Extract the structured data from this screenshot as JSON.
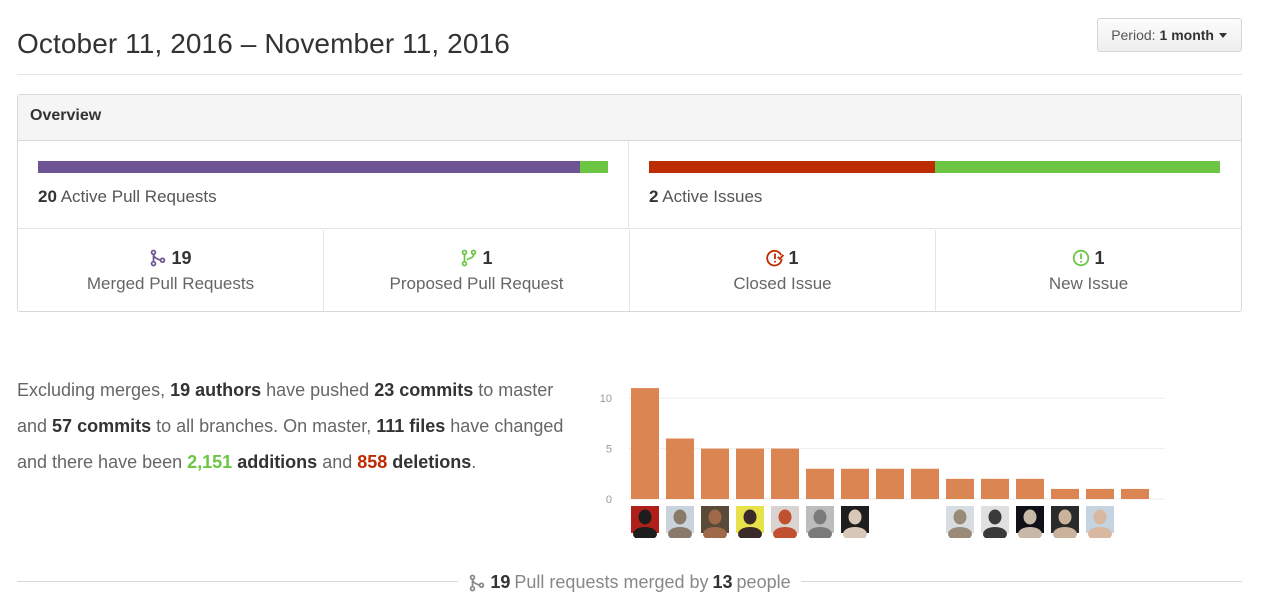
{
  "header": {
    "date_range": "October 11, 2016 – November 11, 2016",
    "period_prefix": "Period:",
    "period_value": "1 month"
  },
  "overview": {
    "title": "Overview",
    "pull_requests": {
      "count": "20",
      "label": "Active Pull Requests",
      "merged_fraction": 0.95,
      "bar_colors": {
        "merged": "#6e5494",
        "proposed": "#6cc644"
      }
    },
    "issues": {
      "count": "2",
      "label": "Active Issues",
      "closed_fraction": 0.5,
      "bar_colors": {
        "closed": "#bd2c00",
        "new": "#6cc644"
      }
    },
    "stats": [
      {
        "icon": "git-merge-icon",
        "color": "#6e5494",
        "count": "19",
        "label": "Merged Pull Requests"
      },
      {
        "icon": "git-pull-request-icon",
        "color": "#6cc644",
        "count": "1",
        "label": "Proposed Pull Request"
      },
      {
        "icon": "issue-closed-icon",
        "color": "#bd2c00",
        "count": "1",
        "label": "Closed Issue"
      },
      {
        "icon": "issue-opened-icon",
        "color": "#6cc644",
        "count": "1",
        "label": "New Issue"
      }
    ]
  },
  "commits_summary": {
    "p1": "Excluding merges, ",
    "authors": "19 authors",
    "p2": " have pushed ",
    "commits_master": "23 commits",
    "p3": " to master and ",
    "commits_all": "57 commits",
    "p4": " to all branches. On master, ",
    "files": "111 files",
    "p5": " have changed and there have been ",
    "additions_num": "2,151",
    "additions_word": " additions",
    "p6": " and ",
    "deletions_num": "858",
    "deletions_word": " deletions",
    "p7": "."
  },
  "chart_data": {
    "type": "bar",
    "values": [
      11,
      6,
      5,
      5,
      5,
      3,
      3,
      3,
      3,
      2,
      2,
      2,
      1,
      1,
      1
    ],
    "yticks": [
      "0",
      "5",
      "10"
    ],
    "ylim": [
      0,
      12
    ],
    "bar_color": "#db8553",
    "grid": true,
    "avatars": [
      {
        "name": "avatar-contributor-1",
        "c1": "#b0201a",
        "c2": "#1d1d1d"
      },
      {
        "name": "avatar-contributor-2",
        "c1": "#c9d3dc",
        "c2": "#8a7a6a"
      },
      {
        "name": "avatar-contributor-3",
        "c1": "#5a4a3a",
        "c2": "#a06a4a"
      },
      {
        "name": "avatar-contributor-4",
        "c1": "#e8e24a",
        "c2": "#3a2a2a"
      },
      {
        "name": "avatar-contributor-5",
        "c1": "#d9d4cf",
        "c2": "#c05030"
      },
      {
        "name": "avatar-contributor-6",
        "c1": "#bcbcbc",
        "c2": "#7a7a7a"
      },
      {
        "name": "avatar-contributor-7",
        "c1": "#1e1e1e",
        "c2": "#d8c8b8"
      },
      null,
      null,
      {
        "name": "avatar-contributor-8",
        "c1": "#d8dde2",
        "c2": "#9a8a7a"
      },
      {
        "name": "avatar-contributor-9",
        "c1": "#e0e0e0",
        "c2": "#3a3a3a"
      },
      {
        "name": "avatar-contributor-10",
        "c1": "#101018",
        "c2": "#c8b8a8"
      },
      {
        "name": "avatar-contributor-11",
        "c1": "#2a2a2a",
        "c2": "#c9b39d"
      },
      {
        "name": "avatar-contributor-12",
        "c1": "#c6d4e2",
        "c2": "#d8b8a0"
      },
      null
    ]
  },
  "footer": {
    "count": "19",
    "text1": " Pull requests merged by ",
    "people": "13",
    "text2": " people"
  }
}
